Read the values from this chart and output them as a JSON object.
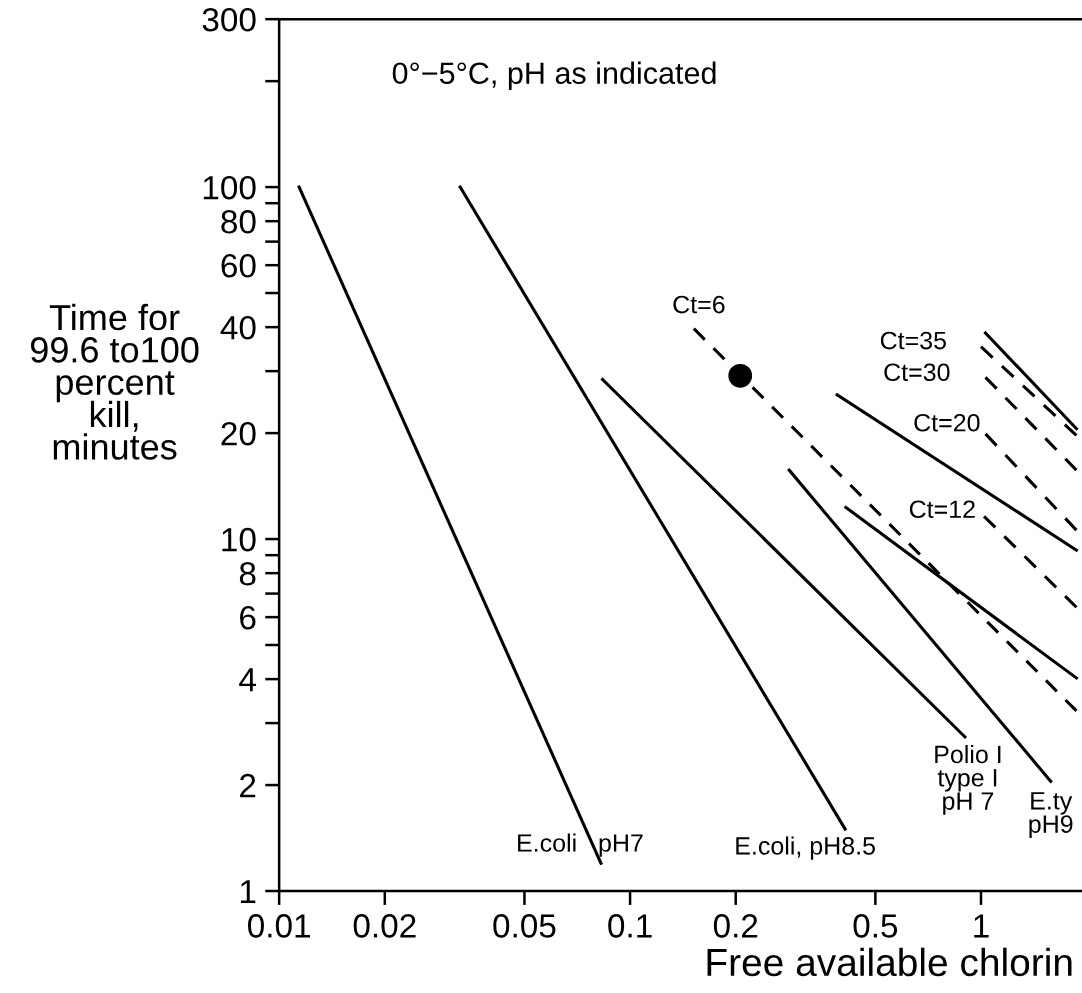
{
  "chart_data": {
    "type": "line",
    "xlabel": "Free available chlorin",
    "ylabel": "Time for\n99.6 to100\npercent\nkill,\nminutes",
    "log": "xy",
    "xlim": [
      0.01,
      1.94
    ],
    "ylim": [
      1,
      300
    ],
    "xticks": [
      {
        "value": 0.01,
        "label": "0.01"
      },
      {
        "value": 0.02,
        "label": "0.02"
      },
      {
        "value": 0.05,
        "label": "0.05"
      },
      {
        "value": 0.1,
        "label": "0.1"
      },
      {
        "value": 0.2,
        "label": "0.2"
      },
      {
        "value": 0.5,
        "label": "0.5"
      },
      1
    ],
    "yticks": [
      1,
      2,
      {
        "value": 3,
        "label": null
      },
      4,
      {
        "value": 5,
        "label": null
      },
      6,
      {
        "value": 7,
        "label": null
      },
      8,
      {
        "value": 9,
        "label": null
      },
      10,
      20,
      {
        "value": 30,
        "label": null
      },
      40,
      {
        "value": 50,
        "label": null
      },
      60,
      {
        "value": 70,
        "label": null
      },
      80,
      {
        "value": 90,
        "label": null
      },
      100,
      {
        "value": 200,
        "label": null
      },
      300
    ],
    "grid": false,
    "series": [
      {
        "color": "#000000",
        "line_style": "solid",
        "x": [
          0.0114,
          0.0826
        ],
        "values": [
          100,
          1.2
        ]
      },
      {
        "color": "#000000",
        "line_style": "solid",
        "x": [
          0.0328,
          0.41
        ],
        "values": [
          100,
          1.5
        ]
      },
      {
        "color": "#000000",
        "line_style": "solid",
        "x": [
          0.0835,
          0.9
        ],
        "values": [
          28.4,
          2.74
        ]
      },
      {
        "color": "#000000",
        "line_style": "solid",
        "x": [
          0.284,
          1.58
        ],
        "values": [
          15.7,
          2.05
        ]
      },
      {
        "color": "#000000",
        "line_style": "solid",
        "x": [
          0.412,
          1.87
        ],
        "values": [
          12.3,
          4.03
        ]
      },
      {
        "color": "#000000",
        "line_style": "solid",
        "x": [
          0.389,
          1.87
        ],
        "values": [
          25.7,
          9.3
        ]
      },
      {
        "color": "#000000",
        "line_style": "dashed",
        "x": [
          0.152,
          1.87
        ],
        "values": [
          39.6,
          3.25
        ]
      },
      {
        "color": "#000000",
        "type": "scatter",
        "marker": "circle",
        "x": [
          0.206
        ],
        "values": [
          29.1
        ]
      },
      {
        "color": "#000000",
        "line_style": "dashed",
        "x": [
          1.02,
          1.87
        ],
        "values": [
          11.6,
          6.4
        ]
      },
      {
        "color": "#000000",
        "line_style": "dashed",
        "x": [
          1.03,
          1.87
        ],
        "values": [
          19.9,
          10.6
        ]
      },
      {
        "color": "#000000",
        "line_style": "dashed",
        "x": [
          1.03,
          1.87
        ],
        "values": [
          28.8,
          15.7
        ]
      },
      {
        "color": "#000000",
        "line_style": "dashed",
        "x": [
          1.0,
          1.87
        ],
        "values": [
          35.2,
          19.7
        ]
      },
      {
        "color": "#000000",
        "line_style": "solid",
        "x": [
          1.03,
          1.87
        ],
        "values": [
          38.5,
          20.6
        ]
      }
    ],
    "annotations": [
      "0°−5°C, pH as indicated",
      {
        "text": "Ct=6",
        "x": 0.152,
        "y": 39.6
      },
      {
        "text": "Ct=35",
        "x": 1.0,
        "y": 35.2
      },
      {
        "text": "Ct=30",
        "x": 1.03,
        "y": 28.8
      },
      {
        "text": "Ct=20",
        "x": 1.03,
        "y": 19.9
      },
      {
        "text": "Ct=12",
        "x": 1.02,
        "y": 11.6
      },
      {
        "text": "E.coli   pH7",
        "x": 0.0826,
        "y": 1.2
      },
      {
        "text": "E.coli, pH8.5",
        "x": 0.41,
        "y": 1.5
      },
      {
        "text": "Polio I\ntype I\npH 7",
        "x": 0.9,
        "y": 2.74
      },
      {
        "text": "E.ty\npH9",
        "x": 1.58,
        "y": 2.05
      }
    ]
  }
}
